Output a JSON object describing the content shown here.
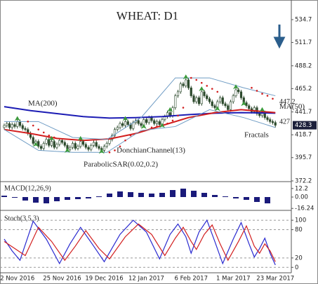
{
  "chart_data": [
    {
      "type": "candlestick",
      "title": "WHEAT: D1",
      "categories": [
        null,
        null,
        null,
        null,
        null,
        "2 Nov 2016",
        null,
        null,
        null,
        null,
        null,
        null,
        null,
        null,
        null,
        null,
        null,
        null,
        null,
        null,
        null,
        null,
        "25 Nov 2016",
        null,
        null,
        null,
        null,
        null,
        null,
        null,
        null,
        null,
        null,
        null,
        null,
        null,
        null,
        null,
        "19 Dec 2016",
        null,
        null,
        null,
        null,
        null,
        null,
        null,
        null,
        null,
        null,
        null,
        null,
        null,
        null,
        null,
        "12 Jan 2017",
        null,
        null,
        null,
        null,
        null,
        null,
        null,
        null,
        null,
        null,
        null,
        null,
        null,
        null,
        null,
        null,
        "6 Feb 2017",
        null,
        null,
        null,
        null,
        null,
        null,
        null,
        null,
        null,
        null,
        null,
        null,
        null,
        null,
        null,
        "1 Mar 2017",
        null,
        null,
        null,
        null,
        null,
        null,
        null,
        null,
        null,
        null,
        null,
        null,
        null,
        null,
        null,
        "23 Mar 2017"
      ],
      "open": [
        426,
        428,
        430,
        426,
        429,
        427,
        432,
        428,
        425,
        424,
        420,
        416,
        410,
        412,
        407,
        405,
        410,
        414,
        408,
        412,
        406,
        409,
        413,
        411,
        408,
        404,
        406,
        410,
        405,
        407,
        412,
        409,
        406,
        404,
        408,
        411,
        407,
        405,
        403,
        407,
        410,
        414,
        418,
        424,
        426,
        430,
        428,
        432,
        429,
        425,
        431,
        433,
        430,
        428,
        434,
        431,
        436,
        433,
        430,
        432,
        429,
        434,
        437,
        441,
        438,
        446,
        458,
        462,
        470,
        468,
        474,
        466,
        458,
        452,
        456,
        450,
        462,
        458,
        455,
        452,
        448,
        446,
        452,
        456,
        450,
        448,
        444,
        452,
        458,
        464,
        462,
        456,
        451,
        448,
        445,
        442,
        446,
        440,
        438,
        441,
        436,
        434,
        432,
        431
      ],
      "high": [
        430,
        432,
        432,
        431,
        431,
        434,
        434,
        430,
        427,
        426,
        422,
        418,
        414,
        414,
        409,
        412,
        416,
        416,
        414,
        414,
        411,
        415,
        415,
        413,
        410,
        408,
        412,
        412,
        409,
        414,
        414,
        411,
        408,
        410,
        413,
        413,
        409,
        407,
        409,
        412,
        416,
        420,
        426,
        428,
        432,
        432,
        434,
        434,
        431,
        433,
        435,
        435,
        432,
        436,
        436,
        438,
        438,
        435,
        434,
        434,
        436,
        439,
        443,
        443,
        448,
        460,
        464,
        472,
        472,
        476,
        476,
        468,
        460,
        458,
        458,
        464,
        464,
        460,
        457,
        454,
        450,
        454,
        458,
        458,
        452,
        450,
        454,
        460,
        466,
        466,
        464,
        458,
        453,
        450,
        447,
        448,
        448,
        442,
        443,
        443,
        438,
        436,
        434,
        433
      ],
      "low": [
        424,
        426,
        424,
        424,
        425,
        425,
        426,
        423,
        422,
        418,
        414,
        408,
        408,
        405,
        403,
        403,
        408,
        406,
        406,
        404,
        404,
        407,
        409,
        406,
        402,
        402,
        404,
        403,
        403,
        405,
        407,
        404,
        402,
        402,
        406,
        405,
        403,
        401,
        401,
        405,
        408,
        412,
        416,
        422,
        424,
        426,
        426,
        427,
        423,
        423,
        429,
        428,
        426,
        426,
        429,
        429,
        431,
        428,
        428,
        427,
        427,
        432,
        435,
        436,
        436,
        444,
        456,
        460,
        466,
        466,
        464,
        456,
        450,
        450,
        448,
        448,
        456,
        453,
        450,
        446,
        444,
        444,
        450,
        448,
        446,
        442,
        442,
        450,
        456,
        460,
        454,
        449,
        446,
        443,
        440,
        440,
        438,
        436,
        436,
        434,
        432,
        430,
        429,
        426
      ],
      "close": [
        428,
        430,
        426,
        429,
        427,
        432,
        428,
        425,
        424,
        420,
        416,
        410,
        412,
        407,
        405,
        410,
        414,
        408,
        412,
        406,
        409,
        413,
        411,
        408,
        404,
        406,
        410,
        405,
        407,
        412,
        409,
        406,
        404,
        408,
        411,
        407,
        405,
        403,
        407,
        410,
        414,
        418,
        424,
        426,
        430,
        428,
        432,
        429,
        425,
        431,
        433,
        430,
        428,
        434,
        431,
        436,
        433,
        430,
        432,
        429,
        434,
        437,
        441,
        438,
        446,
        458,
        462,
        470,
        468,
        474,
        466,
        458,
        452,
        456,
        450,
        462,
        458,
        455,
        452,
        448,
        446,
        452,
        456,
        450,
        448,
        444,
        452,
        458,
        464,
        462,
        456,
        451,
        448,
        445,
        442,
        446,
        440,
        438,
        441,
        436,
        434,
        432,
        431,
        428.3
      ],
      "last_price": 428.3,
      "ylim": [
        372.2,
        546
      ],
      "yticks": [
        534.7,
        511.7,
        488.2,
        465.2,
        441.7,
        418.7,
        395.7,
        372.2
      ],
      "series": [
        {
          "name": "MA(200)",
          "style": "line",
          "color": "#1c1cb4",
          "x": [
            0,
            10,
            20,
            30,
            40,
            50,
            60,
            70,
            80,
            90,
            103
          ],
          "values": [
            447,
            443,
            440,
            437,
            435.5,
            436,
            437,
            439,
            440.5,
            441,
            440.5
          ]
        },
        {
          "name": "MA(50)",
          "style": "line",
          "color": "#d21e1e",
          "x": [
            0,
            10,
            20,
            30,
            40,
            50,
            60,
            70,
            80,
            90,
            103
          ],
          "values": [
            424,
            420,
            415,
            413,
            414.5,
            420,
            428,
            436,
            441,
            444,
            441
          ]
        },
        {
          "name": "DonchianChannel(13)",
          "style": "channel",
          "color": "#6f9cc4",
          "x": [
            0,
            13,
            26,
            39,
            52,
            65,
            78,
            91,
            103
          ],
          "upper": [
            432,
            432,
            416,
            414,
            436,
            476,
            476,
            466,
            458
          ],
          "lower": [
            424,
            403,
            401,
            401,
            423,
            427,
            444,
            436,
            426
          ]
        },
        {
          "name": "ParabolicSAR(0.02,0.2)",
          "style": "dots",
          "color": "#d21e1e",
          "x": [
            9,
            11,
            13,
            15,
            17,
            19,
            40,
            42,
            44,
            46,
            48,
            56,
            58,
            60,
            62,
            64,
            66,
            68,
            71,
            73,
            75,
            77,
            79,
            81,
            94,
            96,
            98,
            100,
            102
          ],
          "values": [
            432,
            428,
            424,
            421,
            418,
            416,
            401,
            403,
            407,
            413,
            418,
            426,
            427,
            428,
            430,
            433,
            438,
            446,
            476,
            474,
            471,
            468,
            465,
            462,
            466,
            463,
            460,
            458,
            455
          ]
        },
        {
          "name": "Fractals",
          "style": "markers",
          "color": "#3a9a3a",
          "x": [
            5,
            12,
            18,
            24,
            29,
            37,
            46,
            53,
            60,
            63,
            69,
            75,
            81,
            88,
            91,
            98
          ],
          "values": [
            434,
            408,
            414,
            402,
            414,
            401,
            434,
            426,
            427,
            443,
            476,
            464,
            444,
            466,
            449,
            443
          ]
        }
      ],
      "annotations": [
        {
          "value": 447.2,
          "label": "447.2"
        },
        {
          "value": 427,
          "label": "427"
        }
      ]
    },
    {
      "type": "bar",
      "title": "MACD(12,26,9)",
      "color": "#1a1a7a",
      "x": [
        0,
        4,
        8,
        12,
        16,
        20,
        24,
        28,
        32,
        36,
        40,
        44,
        48,
        52,
        56,
        60,
        64,
        68,
        72,
        76,
        80,
        84,
        88,
        92,
        96,
        100
      ],
      "values": [
        2,
        -1,
        -5,
        -8,
        -9,
        -6,
        -4,
        -3,
        -2,
        1,
        5,
        8,
        7,
        6,
        5,
        6,
        10,
        12,
        9,
        6,
        3,
        1,
        -2,
        -4,
        -7,
        -9
      ],
      "ylim": [
        -17,
        19
      ],
      "yticks": [
        12.2,
        {
          "value": 0,
          "label": "0.00"
        },
        -16.24
      ]
    },
    {
      "type": "line",
      "title": "Stoch(3,5,3)",
      "grid": true,
      "series": [
        {
          "color": "#2a2ad0",
          "x": [
            0,
            3,
            6,
            11,
            16,
            21,
            25,
            29,
            34,
            38,
            44,
            49,
            54,
            59,
            63,
            66,
            69,
            71,
            74,
            77,
            80,
            83,
            87,
            90,
            93,
            95,
            97,
            99,
            101,
            103
          ],
          "values": [
            60,
            35,
            15,
            98,
            60,
            8,
            50,
            85,
            45,
            12,
            70,
            100,
            75,
            18,
            70,
            92,
            65,
            30,
            75,
            100,
            55,
            8,
            60,
            95,
            50,
            22,
            40,
            62,
            30,
            5
          ]
        },
        {
          "color": "#d21e1e",
          "x": [
            0,
            4,
            8,
            13,
            18,
            23,
            27,
            31,
            36,
            40,
            46,
            51,
            56,
            61,
            65,
            68,
            71,
            73,
            76,
            79,
            82,
            85,
            89,
            92,
            95,
            97,
            99,
            101,
            103
          ],
          "values": [
            55,
            40,
            25,
            85,
            55,
            15,
            45,
            78,
            40,
            18,
            65,
            92,
            70,
            25,
            62,
            85,
            55,
            38,
            70,
            90,
            50,
            15,
            55,
            88,
            45,
            30,
            50,
            35,
            12
          ]
        }
      ],
      "ylim": [
        -10,
        118
      ],
      "yticks": [
        100,
        80,
        20,
        0
      ]
    }
  ]
}
